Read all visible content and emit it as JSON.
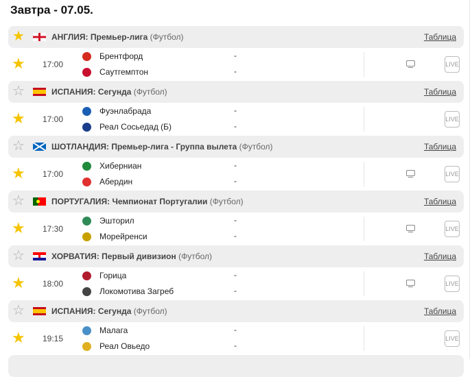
{
  "title": "Завтра - 07.05.",
  "table_label": "Таблица",
  "live_label": "LIVE",
  "colors": {
    "star_active": "#f5c400",
    "star_inactive": "#aaaaaa",
    "header_bg": "#eeeeee"
  },
  "leagues": [
    {
      "country": "АНГЛИЯ:",
      "name": "Премьер-лига",
      "sport": "(Футбол)",
      "flag": "england",
      "favorite": true,
      "match": {
        "time": "17:00",
        "home": "Брентфорд",
        "away": "Саутгемптон",
        "home_score": "-",
        "away_score": "-",
        "tv": true,
        "home_color": "#d52b1e",
        "away_color": "#c8102e"
      }
    },
    {
      "country": "ИСПАНИЯ:",
      "name": "Сегунда",
      "sport": "(Футбол)",
      "flag": "spain",
      "favorite": false,
      "match": {
        "time": "17:00",
        "home": "Фуэнлабрада",
        "away": "Реал Сосьедад (Б)",
        "home_score": "-",
        "away_score": "-",
        "tv": false,
        "home_color": "#1a5fb4",
        "away_color": "#1a3e8c"
      }
    },
    {
      "country": "ШОТЛАНДИЯ:",
      "name": "Премьер-лига - Группа вылета",
      "sport": "(Футбол)",
      "flag": "scotland",
      "favorite": false,
      "match": {
        "time": "17:00",
        "home": "Хиберниан",
        "away": "Абердин",
        "home_score": "-",
        "away_score": "-",
        "tv": true,
        "home_color": "#1f8a3b",
        "away_color": "#e03030"
      }
    },
    {
      "country": "ПОРТУГАЛИЯ:",
      "name": "Чемпионат Португалии",
      "sport": "(Футбол)",
      "flag": "portugal",
      "favorite": false,
      "match": {
        "time": "17:30",
        "home": "Эшторил",
        "away": "Морейренси",
        "home_score": "-",
        "away_score": "-",
        "tv": true,
        "home_color": "#2e8b57",
        "away_color": "#c8a000"
      }
    },
    {
      "country": "ХОРВАТИЯ:",
      "name": "Первый дивизион",
      "sport": "(Футбол)",
      "flag": "croatia",
      "favorite": false,
      "match": {
        "time": "18:00",
        "home": "Горица",
        "away": "Локомотива Загреб",
        "home_score": "-",
        "away_score": "-",
        "tv": true,
        "home_color": "#b01c2e",
        "away_color": "#444444"
      }
    },
    {
      "country": "ИСПАНИЯ:",
      "name": "Сегунда",
      "sport": "(Футбол)",
      "flag": "spain",
      "favorite": false,
      "match": {
        "time": "19:15",
        "home": "Малага",
        "away": "Реал Овьедо",
        "home_score": "-",
        "away_score": "-",
        "tv": false,
        "home_color": "#4a90c8",
        "away_color": "#e0b020"
      }
    }
  ]
}
